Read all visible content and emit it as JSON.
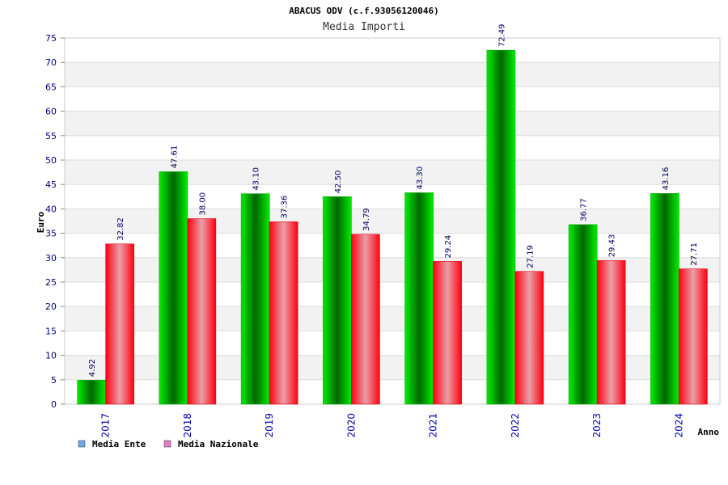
{
  "chart_data": {
    "type": "bar",
    "title": "ABACUS ODV (c.f.93056120046)",
    "subtitle": "Media Importi",
    "xlabel": "Anno",
    "ylabel": "Euro",
    "ylim": [
      0,
      75
    ],
    "ytick_step": 5,
    "grid": true,
    "legend_position": "bottom-left",
    "categories": [
      "2017",
      "2018",
      "2019",
      "2020",
      "2021",
      "2022",
      "2023",
      "2024"
    ],
    "series": [
      {
        "name": "Media Ente",
        "values": [
          4.92,
          47.61,
          43.1,
          42.5,
          43.3,
          72.49,
          36.77,
          43.16
        ],
        "labels": [
          "4.92",
          "47.61",
          "43.10",
          "42.50",
          "43.30",
          "72.49",
          "36.77",
          "43.16"
        ],
        "color": "#00cc00",
        "legend_color": "#6fa8e8"
      },
      {
        "name": "Media Nazionale",
        "values": [
          32.82,
          38.0,
          37.36,
          34.79,
          29.24,
          27.19,
          29.43,
          27.71
        ],
        "labels": [
          "32.82",
          "38.00",
          "37.36",
          "34.79",
          "29.24",
          "27.19",
          "29.43",
          "27.71"
        ],
        "color": "#ee1122",
        "legend_color": "#e080c0"
      }
    ]
  }
}
